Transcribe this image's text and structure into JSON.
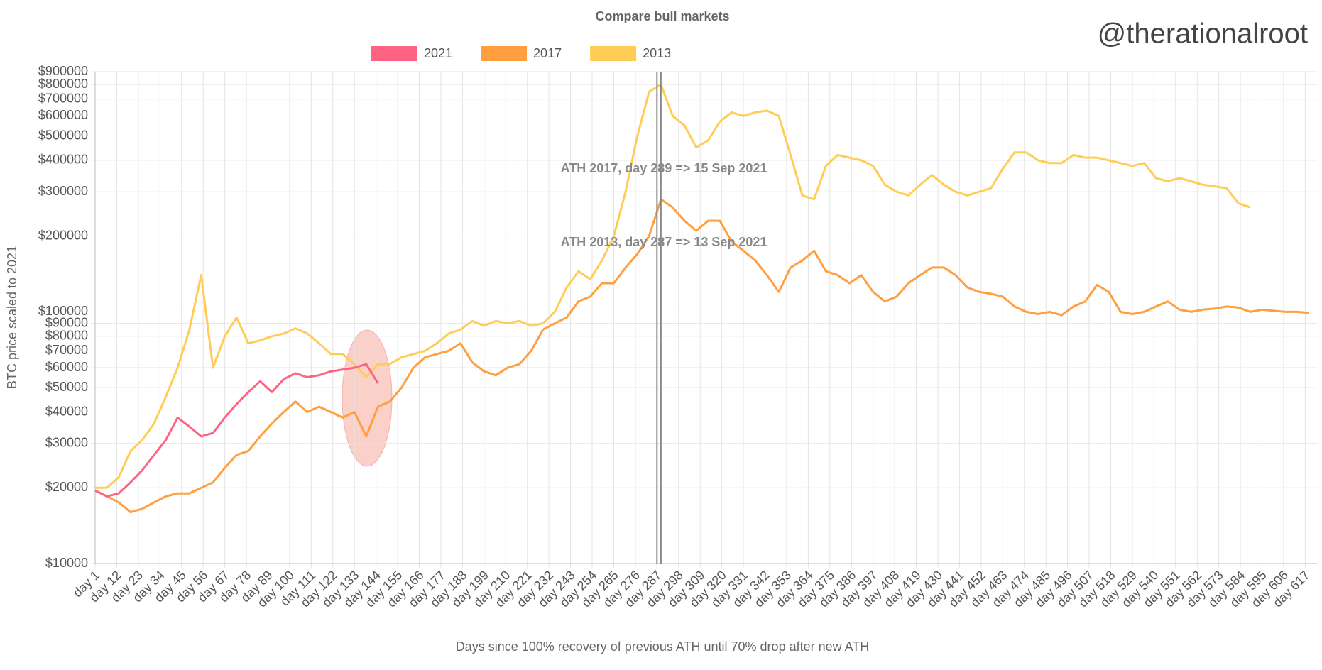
{
  "chart_data": {
    "type": "line",
    "title": "Compare bull markets",
    "watermark": "@therationalroot",
    "x_label": "Days since 100% recovery of previous ATH until 70% drop after new ATH",
    "y_label": "BTC price scaled to 2021",
    "log_y": true,
    "grid": true,
    "legend": "top",
    "xlim": [
      1,
      623
    ],
    "ylim": [
      10000,
      900000
    ],
    "yticks": [
      {
        "value": 10000,
        "label": "$10000"
      },
      {
        "value": 20000,
        "label": "$20000"
      },
      {
        "value": 30000,
        "label": "$30000"
      },
      {
        "value": 40000,
        "label": "$40000"
      },
      {
        "value": 50000,
        "label": "$50000"
      },
      {
        "value": 60000,
        "label": "$60000"
      },
      {
        "value": 70000,
        "label": "$70000"
      },
      {
        "value": 80000,
        "label": "$80000"
      },
      {
        "value": 90000,
        "label": "$90000"
      },
      {
        "value": 100000,
        "label": "$100000"
      },
      {
        "value": 200000,
        "label": "$200000"
      },
      {
        "value": 300000,
        "label": "$300000"
      },
      {
        "value": 400000,
        "label": "$400000"
      },
      {
        "value": 500000,
        "label": "$500000"
      },
      {
        "value": 600000,
        "label": "$600000"
      },
      {
        "value": 700000,
        "label": "$700000"
      },
      {
        "value": 800000,
        "label": "$800000"
      },
      {
        "value": 900000,
        "label": "$900000"
      }
    ],
    "xticks": [
      {
        "value": 1,
        "label": "day 1"
      },
      {
        "value": 12,
        "label": "day 12"
      },
      {
        "value": 23,
        "label": "day 23"
      },
      {
        "value": 34,
        "label": "day 34"
      },
      {
        "value": 45,
        "label": "day 45"
      },
      {
        "value": 56,
        "label": "day 56"
      },
      {
        "value": 67,
        "label": "day 67"
      },
      {
        "value": 78,
        "label": "day 78"
      },
      {
        "value": 89,
        "label": "day 89"
      },
      {
        "value": 100,
        "label": "day 100"
      },
      {
        "value": 111,
        "label": "day 111"
      },
      {
        "value": 122,
        "label": "day 122"
      },
      {
        "value": 133,
        "label": "day 133"
      },
      {
        "value": 144,
        "label": "day 144"
      },
      {
        "value": 155,
        "label": "day 155"
      },
      {
        "value": 166,
        "label": "day 166"
      },
      {
        "value": 177,
        "label": "day 177"
      },
      {
        "value": 188,
        "label": "day 188"
      },
      {
        "value": 199,
        "label": "day 199"
      },
      {
        "value": 210,
        "label": "day 210"
      },
      {
        "value": 221,
        "label": "day 221"
      },
      {
        "value": 232,
        "label": "day 232"
      },
      {
        "value": 243,
        "label": "day 243"
      },
      {
        "value": 254,
        "label": "day 254"
      },
      {
        "value": 265,
        "label": "day 265"
      },
      {
        "value": 276,
        "label": "day 276"
      },
      {
        "value": 287,
        "label": "day 287"
      },
      {
        "value": 298,
        "label": "day 298"
      },
      {
        "value": 309,
        "label": "day 309"
      },
      {
        "value": 320,
        "label": "day 320"
      },
      {
        "value": 331,
        "label": "day 331"
      },
      {
        "value": 342,
        "label": "day 342"
      },
      {
        "value": 353,
        "label": "day 353"
      },
      {
        "value": 364,
        "label": "day 364"
      },
      {
        "value": 375,
        "label": "day 375"
      },
      {
        "value": 386,
        "label": "day 386"
      },
      {
        "value": 397,
        "label": "day 397"
      },
      {
        "value": 408,
        "label": "day 408"
      },
      {
        "value": 419,
        "label": "day 419"
      },
      {
        "value": 430,
        "label": "day 430"
      },
      {
        "value": 441,
        "label": "day 441"
      },
      {
        "value": 452,
        "label": "day 452"
      },
      {
        "value": 463,
        "label": "day 463"
      },
      {
        "value": 474,
        "label": "day 474"
      },
      {
        "value": 485,
        "label": "day 485"
      },
      {
        "value": 496,
        "label": "day 496"
      },
      {
        "value": 507,
        "label": "day 507"
      },
      {
        "value": 518,
        "label": "day 518"
      },
      {
        "value": 529,
        "label": "day 529"
      },
      {
        "value": 540,
        "label": "day 540"
      },
      {
        "value": 551,
        "label": "day 551"
      },
      {
        "value": 562,
        "label": "day 562"
      },
      {
        "value": 573,
        "label": "day 573"
      },
      {
        "value": 584,
        "label": "day 584"
      },
      {
        "value": 595,
        "label": "day 595"
      },
      {
        "value": 606,
        "label": "day 606"
      },
      {
        "value": 617,
        "label": "day 617"
      }
    ],
    "x": [
      1,
      7,
      13,
      19,
      25,
      31,
      37,
      43,
      49,
      55,
      61,
      67,
      73,
      79,
      85,
      91,
      97,
      103,
      109,
      115,
      121,
      127,
      133,
      139,
      145,
      151,
      157,
      163,
      169,
      175,
      181,
      187,
      193,
      199,
      205,
      211,
      217,
      223,
      229,
      235,
      241,
      247,
      253,
      259,
      265,
      271,
      277,
      283,
      289,
      295,
      301,
      307,
      313,
      319,
      325,
      331,
      337,
      343,
      349,
      355,
      361,
      367,
      373,
      379,
      385,
      391,
      397,
      403,
      409,
      415,
      421,
      427,
      433,
      439,
      445,
      451,
      457,
      463,
      469,
      475,
      481,
      487,
      493,
      499,
      505,
      511,
      517,
      523,
      529,
      535,
      541,
      547,
      553,
      559,
      565,
      571,
      577,
      583,
      589,
      595,
      601,
      607,
      613,
      619
    ],
    "series": [
      {
        "name": "2021",
        "color": "#ff6384",
        "values": [
          19500,
          18500,
          19000,
          21000,
          23500,
          27000,
          31000,
          38000,
          35000,
          32000,
          33000,
          38000,
          43000,
          48000,
          53000,
          48000,
          54000,
          57000,
          55000,
          56000,
          58000,
          59000,
          60000,
          62000,
          52000,
          null,
          null,
          null,
          null,
          null,
          null,
          null,
          null,
          null,
          null,
          null,
          null,
          null,
          null,
          null,
          null,
          null,
          null,
          null,
          null,
          null,
          null,
          null,
          null,
          null,
          null,
          null,
          null,
          null,
          null,
          null,
          null,
          null,
          null,
          null,
          null,
          null,
          null,
          null,
          null,
          null,
          null,
          null,
          null,
          null,
          null,
          null,
          null,
          null,
          null,
          null,
          null,
          null,
          null,
          null,
          null,
          null,
          null,
          null,
          null,
          null,
          null,
          null,
          null,
          null,
          null,
          null,
          null,
          null,
          null,
          null,
          null,
          null,
          null,
          null,
          null,
          null,
          null,
          null
        ]
      },
      {
        "name": "2017",
        "color": "#ff9f40",
        "values": [
          19500,
          18500,
          17500,
          16000,
          16500,
          17500,
          18500,
          19000,
          19000,
          20000,
          21000,
          24000,
          27000,
          28000,
          32000,
          36000,
          40000,
          44000,
          40000,
          42000,
          40000,
          38000,
          40000,
          32000,
          42000,
          44000,
          50000,
          60000,
          66000,
          68000,
          70000,
          75000,
          63000,
          58000,
          56000,
          60000,
          62000,
          70000,
          85000,
          90000,
          95000,
          110000,
          115000,
          130000,
          130000,
          150000,
          170000,
          200000,
          280000,
          260000,
          230000,
          210000,
          230000,
          230000,
          190000,
          175000,
          160000,
          140000,
          120000,
          150000,
          160000,
          175000,
          145000,
          140000,
          130000,
          140000,
          120000,
          110000,
          115000,
          130000,
          140000,
          150000,
          150000,
          140000,
          125000,
          120000,
          118000,
          115000,
          105000,
          100000,
          98000,
          100000,
          97000,
          105000,
          110000,
          128000,
          120000,
          100000,
          98000,
          100000,
          105000,
          110000,
          102000,
          100000,
          102000,
          103000,
          105000,
          104000,
          100000,
          102000,
          101000,
          100000,
          100000,
          99000
        ]
      },
      {
        "name": "2013",
        "color": "#ffcd56",
        "values": [
          20000,
          20000,
          22000,
          28000,
          31000,
          36000,
          46000,
          60000,
          85000,
          140000,
          60000,
          80000,
          95000,
          75000,
          77000,
          80000,
          82000,
          86000,
          82000,
          75000,
          68000,
          68000,
          62000,
          55000,
          62000,
          62000,
          66000,
          68000,
          70000,
          75000,
          82000,
          85000,
          92000,
          88000,
          92000,
          90000,
          92000,
          88000,
          90000,
          100000,
          125000,
          145000,
          135000,
          160000,
          200000,
          300000,
          500000,
          750000,
          800000,
          600000,
          550000,
          450000,
          480000,
          570000,
          620000,
          600000,
          620000,
          630000,
          600000,
          420000,
          290000,
          280000,
          380000,
          420000,
          410000,
          400000,
          380000,
          320000,
          300000,
          290000,
          320000,
          350000,
          320000,
          300000,
          290000,
          300000,
          310000,
          370000,
          430000,
          430000,
          400000,
          390000,
          390000,
          420000,
          410000,
          410000,
          400000,
          390000,
          380000,
          390000,
          340000,
          330000,
          340000,
          330000,
          320000,
          315000,
          310000,
          270000,
          260000,
          null,
          null,
          null,
          null,
          null
        ]
      }
    ],
    "annotations": [
      {
        "x": 289,
        "text": "ATH 2017, day 289 => 15 Sep 2021"
      },
      {
        "x": 287,
        "text": "ATH 2013, day 287 => 13 Sep 2021"
      }
    ]
  }
}
